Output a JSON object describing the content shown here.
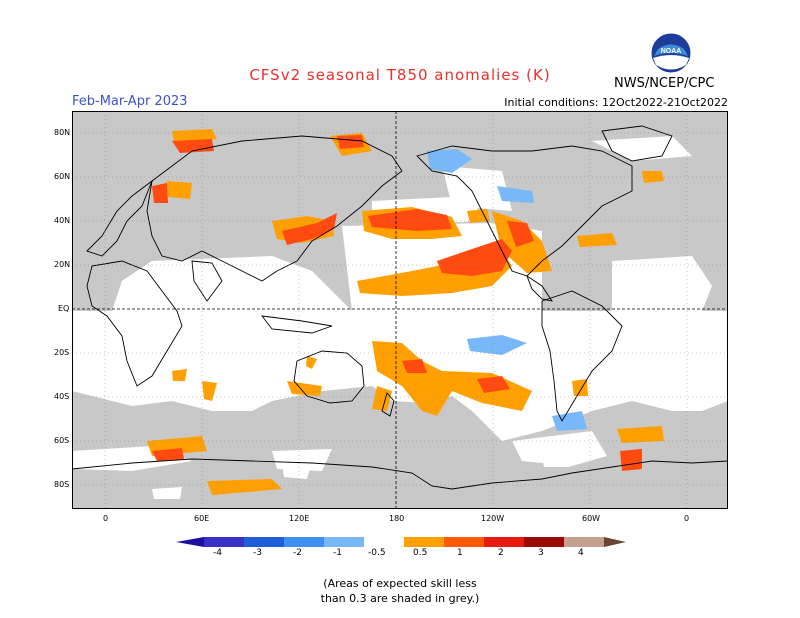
{
  "title": "CFSv2 seasonal T850 anomalies (K)",
  "season": "Feb-Mar-Apr 2023",
  "agency": "NWS/NCEP/CPC",
  "initial_conditions": "Initial conditions: 12Oct2022-21Oct2022",
  "logo_text": "NOAA",
  "lat_labels": [
    "80N",
    "60N",
    "40N",
    "20N",
    "EQ",
    "20S",
    "40S",
    "60S",
    "80S"
  ],
  "lon_labels": [
    "0",
    "60E",
    "120E",
    "180",
    "120W",
    "60W",
    "0"
  ],
  "colorbar": {
    "labels": [
      "-4",
      "-3",
      "-2",
      "-1",
      "-0.5",
      "0.5",
      "1",
      "2",
      "3",
      "4"
    ],
    "colors": {
      "below_-4": "#1c0fa0",
      "-4_-3": "#3a2fc8",
      "-3_-2": "#1f5ed8",
      "-2_-1": "#3f8ff0",
      "-1_-0.5": "#78b8f8",
      "-0.5_0.5": "#ffffff",
      "0.5_1": "#ffa000",
      "1_2": "#ff5a00",
      "2_3": "#e8190e",
      "3_4": "#9c0a05",
      "4_": "#c4a090",
      "above": "#6b4434"
    }
  },
  "map_colors": {
    "low_skill": "#c8c8c8",
    "positive_1": "#ffa000",
    "positive_2": "#ff4a10",
    "negative_1": "#78b8f8",
    "coast": "#000000"
  },
  "note_line1": "(Areas of expected skill less",
  "note_line2": "than 0.3 are shaded in grey.)"
}
